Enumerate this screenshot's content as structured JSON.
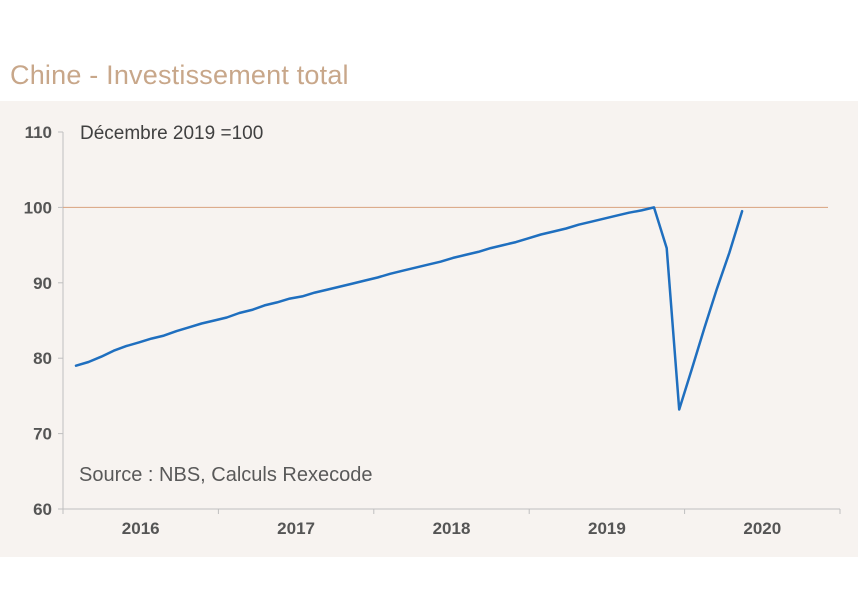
{
  "chart_title": "Chine - Investissement total",
  "chart_data": {
    "type": "line",
    "title": "Chine - Investissement total",
    "annotation": "Décembre 2019 =100",
    "source": "Source : NBS, Calculs Rexecode",
    "ylim": [
      60,
      110
    ],
    "yticks": [
      "60",
      "70",
      "80",
      "90",
      "100",
      "110"
    ],
    "reference_line": 100,
    "year_labels": [
      "2016",
      "2017",
      "2018",
      "2019",
      "2020"
    ],
    "x_start": 2016.0,
    "x_end": 2021.0,
    "line_color": "#1f6fbf",
    "reference_color": "#d9a27e",
    "series": [
      {
        "name": "Investissement total",
        "values": [
          [
            2016.0,
            79.0
          ],
          [
            2016.083,
            79.5
          ],
          [
            2016.167,
            80.2
          ],
          [
            2016.25,
            81.0
          ],
          [
            2016.333,
            81.6
          ],
          [
            2016.417,
            82.1
          ],
          [
            2016.5,
            82.6
          ],
          [
            2016.583,
            83.0
          ],
          [
            2016.667,
            83.6
          ],
          [
            2016.75,
            84.1
          ],
          [
            2016.833,
            84.6
          ],
          [
            2016.917,
            85.0
          ],
          [
            2017.0,
            85.4
          ],
          [
            2017.083,
            86.0
          ],
          [
            2017.167,
            86.4
          ],
          [
            2017.25,
            87.0
          ],
          [
            2017.333,
            87.4
          ],
          [
            2017.417,
            87.9
          ],
          [
            2017.5,
            88.2
          ],
          [
            2017.583,
            88.7
          ],
          [
            2017.667,
            89.1
          ],
          [
            2017.75,
            89.5
          ],
          [
            2017.833,
            89.9
          ],
          [
            2017.917,
            90.3
          ],
          [
            2018.0,
            90.7
          ],
          [
            2018.083,
            91.2
          ],
          [
            2018.167,
            91.6
          ],
          [
            2018.25,
            92.0
          ],
          [
            2018.333,
            92.4
          ],
          [
            2018.417,
            92.8
          ],
          [
            2018.5,
            93.3
          ],
          [
            2018.583,
            93.7
          ],
          [
            2018.667,
            94.1
          ],
          [
            2018.75,
            94.6
          ],
          [
            2018.833,
            95.0
          ],
          [
            2018.917,
            95.4
          ],
          [
            2019.0,
            95.9
          ],
          [
            2019.083,
            96.4
          ],
          [
            2019.167,
            96.8
          ],
          [
            2019.25,
            97.2
          ],
          [
            2019.333,
            97.7
          ],
          [
            2019.417,
            98.1
          ],
          [
            2019.5,
            98.5
          ],
          [
            2019.583,
            98.9
          ],
          [
            2019.667,
            99.3
          ],
          [
            2019.75,
            99.6
          ],
          [
            2019.833,
            100.0
          ],
          [
            2019.917,
            94.6
          ],
          [
            2020.0,
            73.2
          ],
          [
            2020.083,
            78.5
          ],
          [
            2020.167,
            84.0
          ],
          [
            2020.25,
            89.2
          ],
          [
            2020.333,
            94.0
          ],
          [
            2020.417,
            99.5
          ]
        ]
      }
    ]
  }
}
